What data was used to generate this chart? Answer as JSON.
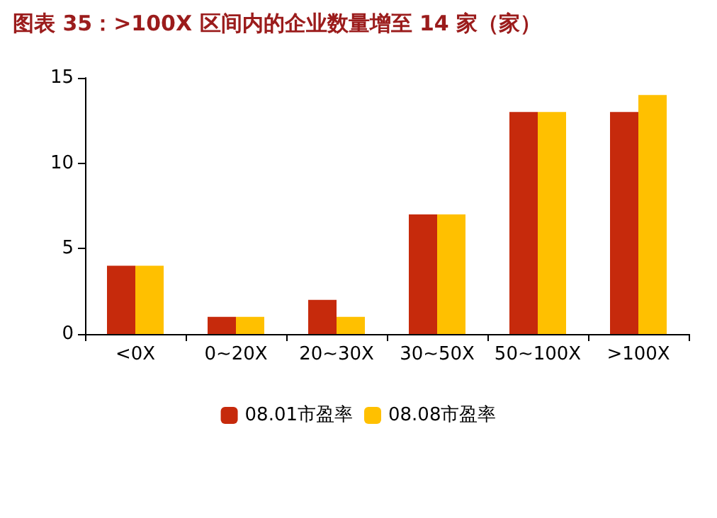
{
  "chart_data": {
    "type": "bar",
    "title": "图表 35：>100X 区间内的企业数量增至 14 家（家）",
    "categories": [
      "<0X",
      "0~20X",
      "20~30X",
      "30~50X",
      "50~100X",
      ">100X"
    ],
    "series": [
      {
        "name": "08.01市盈率",
        "color": "#c62a0c",
        "values": [
          4,
          1,
          2,
          7,
          13,
          13
        ]
      },
      {
        "name": "08.08市盈率",
        "color": "#ffc000",
        "values": [
          4,
          1,
          1,
          7,
          13,
          14
        ]
      }
    ],
    "ylim": [
      0,
      15
    ],
    "yticks": [
      0,
      5,
      10,
      15
    ],
    "grid": false,
    "legend": "bottom"
  }
}
